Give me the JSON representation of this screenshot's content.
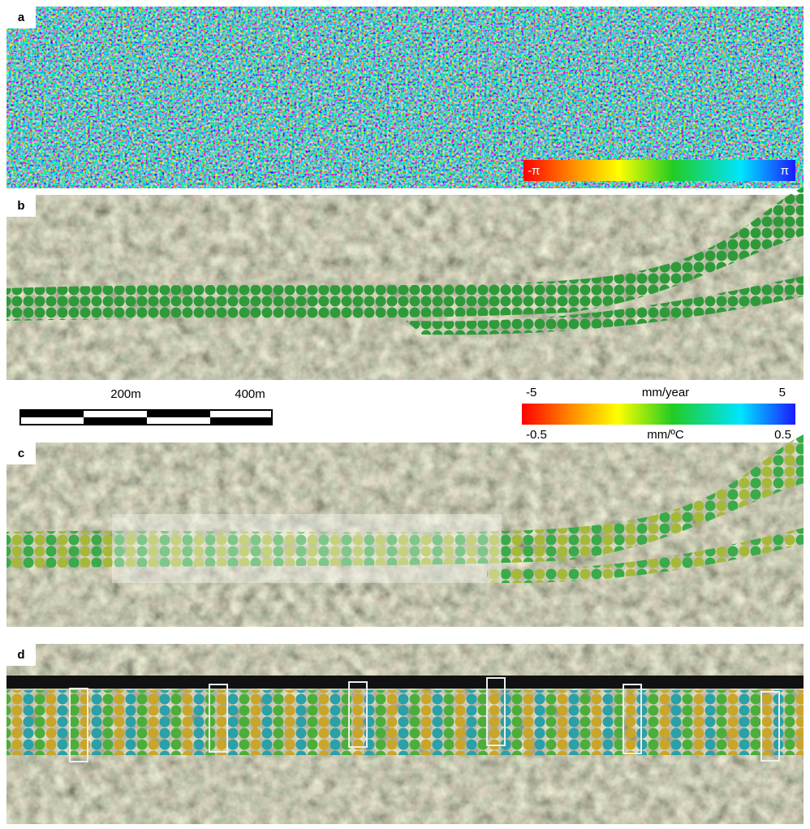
{
  "panels": [
    {
      "label": "a"
    },
    {
      "label": "b"
    },
    {
      "label": "c"
    },
    {
      "label": "d"
    }
  ],
  "phase_colorbar": {
    "min_label": "-π",
    "max_label": "π"
  },
  "scale_bar": {
    "labels": [
      "200m",
      "400m"
    ]
  },
  "legend": {
    "velocity": {
      "min_label": "-5",
      "unit": "mm/year",
      "max_label": "5"
    },
    "thermal": {
      "min_label": "-0.5",
      "unit": "mm/ºC",
      "max_label": "0.5"
    }
  }
}
